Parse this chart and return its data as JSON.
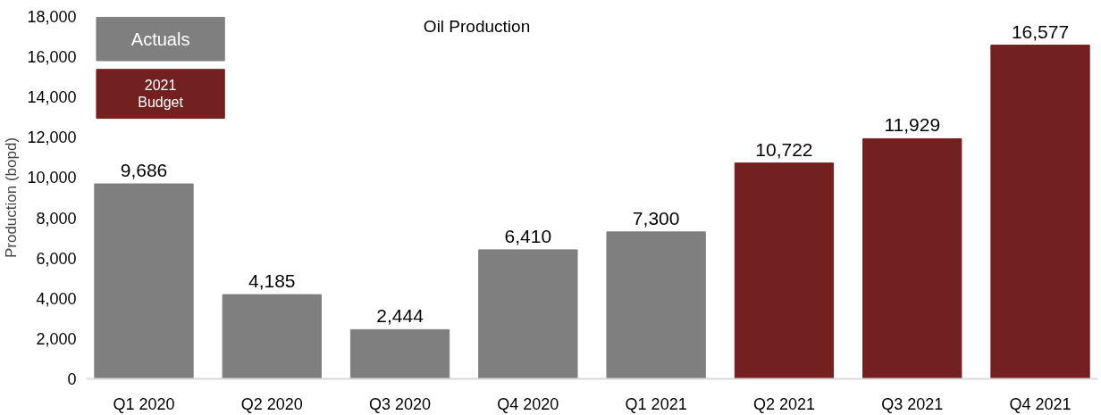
{
  "chart_data": {
    "type": "bar",
    "title": "Oil Production",
    "ylabel": "Production (bopd)",
    "categories": [
      "Q1 2020",
      "Q2 2020",
      "Q3 2020",
      "Q4 2020",
      "Q1 2021",
      "Q2 2021",
      "Q3 2021",
      "Q4 2021"
    ],
    "series": [
      {
        "name": "Actuals",
        "color": "#7f7f7f",
        "values": [
          9686,
          4185,
          2444,
          6410,
          7300,
          null,
          null,
          null
        ],
        "value_labels": [
          "9,686",
          "4,185",
          "2,444",
          "6,410",
          "7,300",
          null,
          null,
          null
        ]
      },
      {
        "name": "2021 Budget",
        "color": "#722020",
        "values": [
          null,
          null,
          null,
          null,
          null,
          10722,
          11929,
          16577
        ],
        "value_labels": [
          null,
          null,
          null,
          null,
          null,
          "10,722",
          "11,929",
          "16,577"
        ]
      }
    ],
    "ylim": [
      0,
      18000
    ],
    "yticks": [
      {
        "value": 0,
        "label": "0"
      },
      {
        "value": 2000,
        "label": "2,000"
      },
      {
        "value": 4000,
        "label": "4,000"
      },
      {
        "value": 6000,
        "label": "6,000"
      },
      {
        "value": 8000,
        "label": "8,000"
      },
      {
        "value": 10000,
        "label": "10,000"
      },
      {
        "value": 12000,
        "label": "12,000"
      },
      {
        "value": 14000,
        "label": "14,000"
      },
      {
        "value": 16000,
        "label": "16,000"
      },
      {
        "value": 18000,
        "label": "18,000"
      }
    ],
    "legend": "top left",
    "grid": false
  }
}
